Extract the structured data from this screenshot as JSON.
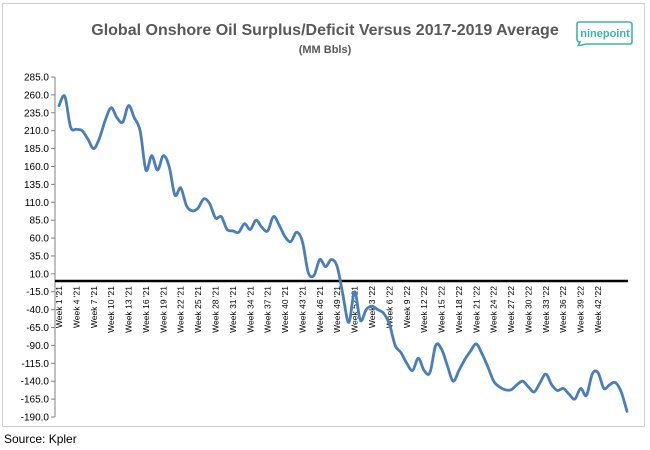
{
  "title": "Global Onshore Oil Surplus/Deficit Versus 2017-2019 Average",
  "subtitle": "(MM Bbls)",
  "logo": {
    "text": "ninepoint",
    "color": "#3fb5a8"
  },
  "source": "Source: Kpler",
  "chart_data": {
    "type": "line",
    "title": "Global Onshore Oil Surplus/Deficit Versus 2017-2019 Average",
    "subtitle": "(MM Bbls)",
    "ylim": [
      -190,
      285
    ],
    "yticks": [
      "285.0",
      "260.0",
      "235.0",
      "210.0",
      "185.0",
      "160.0",
      "135.0",
      "110.0",
      "85.0",
      "60.0",
      "35.0",
      "10.0",
      "-15.0",
      "-40.0",
      "-65.0",
      "-90.0",
      "-115.0",
      "-140.0",
      "-165.0",
      "-190.0"
    ],
    "ytick_values": [
      285,
      260,
      235,
      210,
      185,
      160,
      135,
      110,
      85,
      60,
      35,
      10,
      -15,
      -40,
      -65,
      -90,
      -115,
      -140,
      -165,
      -190
    ],
    "xticks": [
      "Week 1 '21",
      "Week 4 '21",
      "Week 7 '21",
      "Week 10 '21",
      "Week 13 '21",
      "Week 16 '21",
      "Week 19 '21",
      "Week 22 '21",
      "Week 25 '21",
      "Week 28 '21",
      "Week 31 '21",
      "Week 34 '21",
      "Week 37 '21",
      "Week 40 '21",
      "Week 43 '21",
      "Week 46 '21",
      "Week 49 '21",
      "Week 52 '21",
      "Week 3 '22",
      "Week 6 '22",
      "Week 9 '22",
      "Week 12 '22",
      "Week 15 '22",
      "Week 18 '22",
      "Week 21 '22",
      "Week 24 '22",
      "Week 27 '22",
      "Week 30 '22",
      "Week 33 '22",
      "Week 36 '22",
      "Week 39 '22",
      "Week 42 '22"
    ],
    "zero_line": 0,
    "grid": false,
    "line_color": "#4a7ebb",
    "series": [
      {
        "values": [
          245,
          258,
          215,
          212,
          210,
          198,
          185,
          200,
          225,
          242,
          228,
          222,
          245,
          228,
          210,
          155,
          175,
          155,
          175,
          160,
          120,
          130,
          105,
          98,
          102,
          115,
          108,
          88,
          90,
          72,
          70,
          68,
          80,
          72,
          85,
          75,
          70,
          90,
          78,
          62,
          55,
          68,
          55,
          12,
          8,
          30,
          20,
          30,
          20,
          -20,
          -58,
          -15,
          -55,
          -40,
          -35,
          -40,
          -45,
          -60,
          -90,
          -100,
          -115,
          -125,
          -108,
          -125,
          -128,
          -90,
          -95,
          -118,
          -140,
          -125,
          -110,
          -98,
          -88,
          -102,
          -120,
          -140,
          -148,
          -152,
          -152,
          -145,
          -140,
          -148,
          -155,
          -142,
          -130,
          -145,
          -153,
          -150,
          -158,
          -165,
          -150,
          -160,
          -130,
          -128,
          -150,
          -145,
          -142,
          -155,
          -182
        ]
      }
    ]
  }
}
